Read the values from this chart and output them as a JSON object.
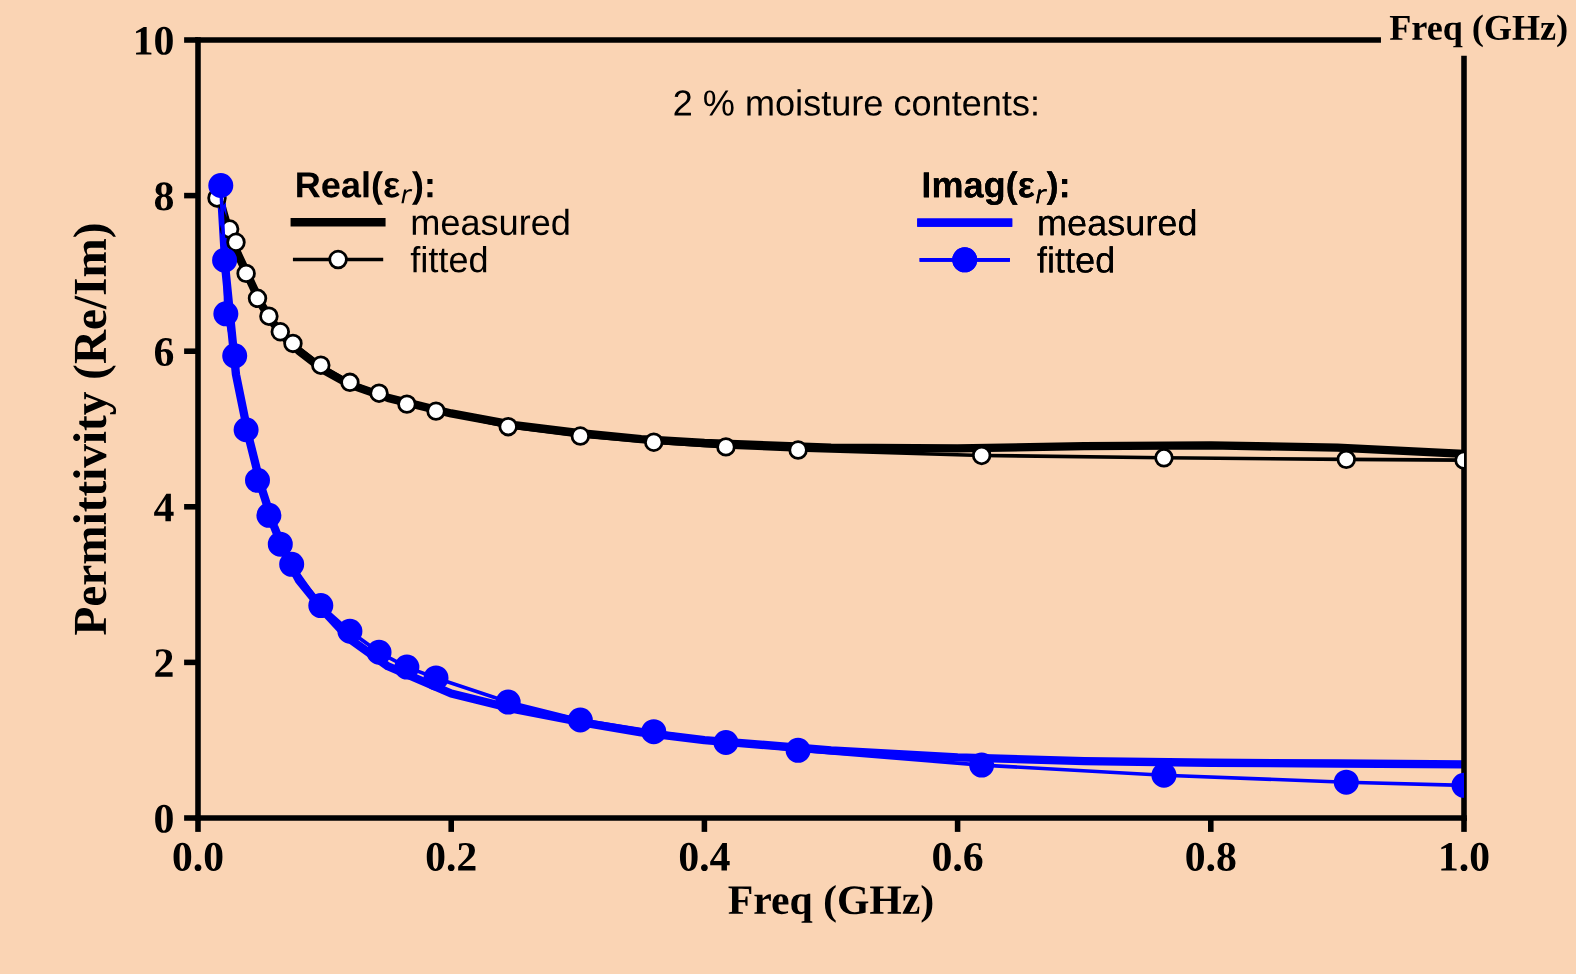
{
  "chart_data": {
    "type": "line",
    "xlabel": "Freq (GHz)",
    "ylabel": "Permittivity (Re/Im)",
    "xlim": [
      0.0,
      1.0
    ],
    "xticks": [
      {
        "value": 0.0,
        "label": "0.0"
      },
      {
        "value": 0.2,
        "label": "0.2"
      },
      {
        "value": 0.4,
        "label": "0.4"
      },
      {
        "value": 0.6,
        "label": "0.6"
      },
      {
        "value": 0.8,
        "label": "0.8"
      },
      {
        "value": 1.0,
        "label": "1.0"
      }
    ],
    "ylim": [
      0,
      10
    ],
    "yticks": [
      0,
      2,
      4,
      6,
      8,
      10
    ],
    "grid": false,
    "legend": "top",
    "annotations": [
      "2 % moisture contents:",
      "Real(ε$_{r}$):",
      "Imag(ε$_{r}$):",
      "Freq (GHz)"
    ],
    "series": [
      {
        "name": "measured",
        "color": "#000000",
        "marker": "none",
        "x": [
          0.018,
          0.025,
          0.03,
          0.04,
          0.05,
          0.06,
          0.07,
          0.08,
          0.1,
          0.12,
          0.15,
          0.2,
          0.25,
          0.3,
          0.35,
          0.4,
          0.5,
          0.6,
          0.7,
          0.8,
          0.9,
          1.0
        ],
        "values": [
          7.9,
          7.5,
          7.3,
          6.95,
          6.6,
          6.35,
          6.15,
          6.0,
          5.75,
          5.57,
          5.4,
          5.2,
          5.05,
          4.95,
          4.87,
          4.82,
          4.76,
          4.75,
          4.78,
          4.79,
          4.76,
          4.68
        ]
      },
      {
        "name": "fitted",
        "color": "#000000",
        "marker": "circle",
        "x": [
          0.015,
          0.025,
          0.03,
          0.038,
          0.047,
          0.056,
          0.065,
          0.075,
          0.097,
          0.12,
          0.143,
          0.165,
          0.188,
          0.245,
          0.302,
          0.36,
          0.417,
          0.474,
          0.619,
          0.763,
          0.907,
          1.0
        ],
        "values": [
          7.97,
          7.57,
          7.4,
          7.0,
          6.68,
          6.45,
          6.25,
          6.1,
          5.82,
          5.6,
          5.46,
          5.32,
          5.23,
          5.03,
          4.91,
          4.83,
          4.77,
          4.73,
          4.66,
          4.63,
          4.61,
          4.6
        ]
      },
      {
        "name": "measured",
        "color": "#0000ff",
        "marker": "none",
        "x": [
          0.018,
          0.022,
          0.03,
          0.04,
          0.05,
          0.06,
          0.07,
          0.08,
          0.1,
          0.12,
          0.15,
          0.2,
          0.25,
          0.3,
          0.35,
          0.4,
          0.5,
          0.6,
          0.7,
          0.8,
          0.9,
          1.0
        ],
        "values": [
          8.1,
          7.0,
          5.7,
          4.9,
          4.25,
          3.75,
          3.35,
          3.05,
          2.65,
          2.3,
          1.95,
          1.6,
          1.4,
          1.24,
          1.1,
          1.0,
          0.87,
          0.78,
          0.73,
          0.71,
          0.7,
          0.69
        ]
      },
      {
        "name": "fitted",
        "color": "#0000ff",
        "marker": "circle",
        "x": [
          0.018,
          0.021,
          0.022,
          0.029,
          0.038,
          0.047,
          0.056,
          0.065,
          0.074,
          0.097,
          0.12,
          0.143,
          0.165,
          0.188,
          0.245,
          0.302,
          0.36,
          0.417,
          0.474,
          0.619,
          0.763,
          0.907,
          1.0
        ],
        "values": [
          8.13,
          7.17,
          6.48,
          5.94,
          4.99,
          4.34,
          3.89,
          3.52,
          3.26,
          2.73,
          2.4,
          2.13,
          1.94,
          1.8,
          1.49,
          1.26,
          1.11,
          0.97,
          0.87,
          0.68,
          0.55,
          0.46,
          0.42
        ]
      }
    ]
  }
}
